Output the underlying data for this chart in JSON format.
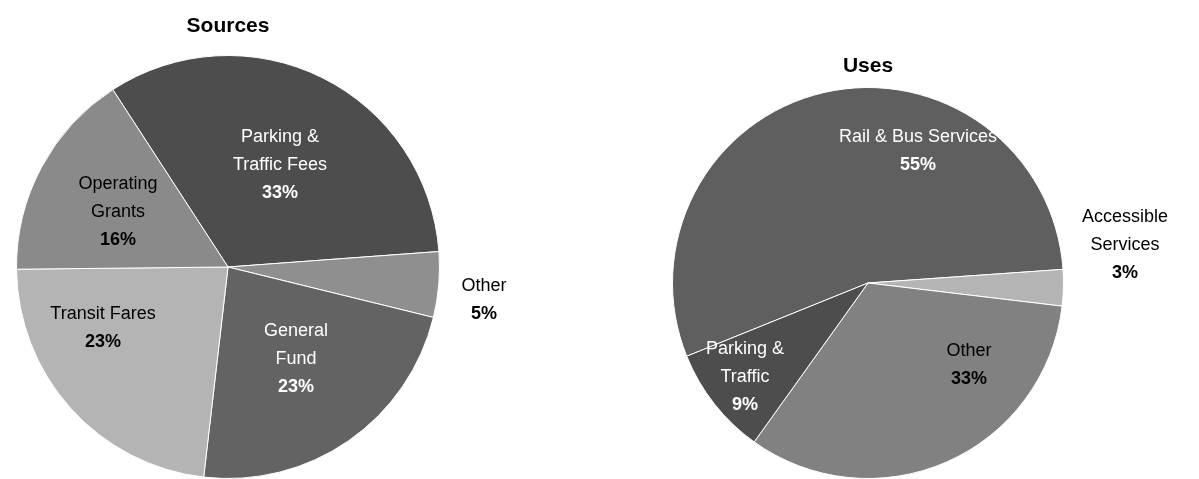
{
  "chart_data": [
    {
      "type": "pie",
      "title": "Sources",
      "categories": [
        "Parking & Traffic Fees",
        "Other",
        "General Fund",
        "Transit Fares",
        "Operating Grants"
      ],
      "values": [
        33,
        5,
        23,
        23,
        16
      ],
      "colors": [
        "#4d4d4d",
        "#8f8f8f",
        "#636363",
        "#b4b4b4",
        "#8a8a8a"
      ],
      "value_labels": [
        "33%",
        "5%",
        "23%",
        "23%",
        "16%"
      ],
      "legend": false
    },
    {
      "type": "pie",
      "title": "Uses",
      "categories": [
        "Rail & Bus Services",
        "Accessible Services",
        "Other",
        "Parking & Traffic"
      ],
      "values": [
        55,
        3,
        33,
        9
      ],
      "colors": [
        "#5f5f5f",
        "#b4b4b4",
        "#818181",
        "#4d4d4d"
      ],
      "value_labels": [
        "55%",
        "3%",
        "33%",
        "9%"
      ],
      "legend": false
    }
  ]
}
